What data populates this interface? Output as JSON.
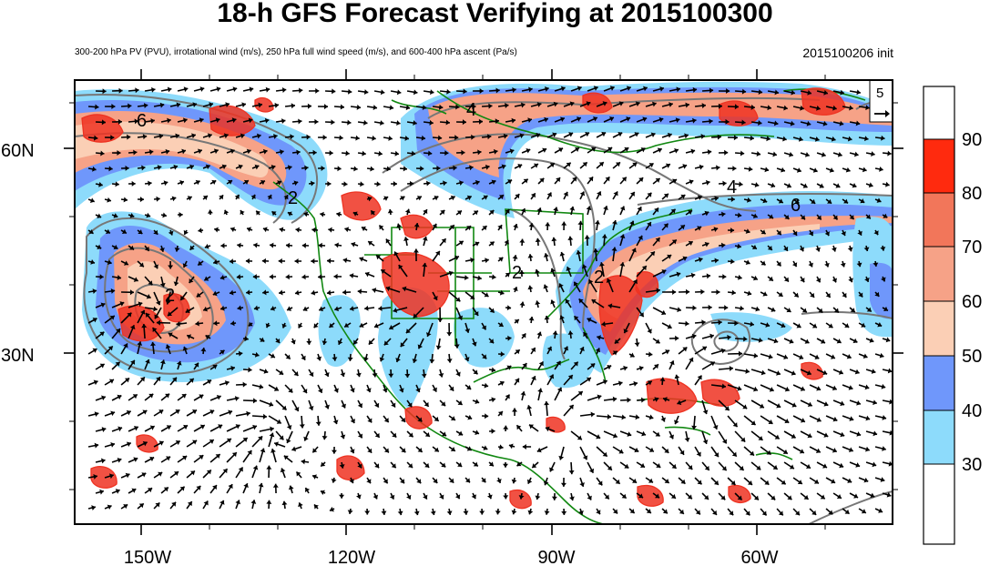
{
  "title": "18-h GFS Forecast Verifying at 2015100300",
  "subtitle": "300-200 hPa PV (PVU), irrotational wind (m/s), 250 hPa full wind speed (m/s), and 600-400 hPa ascent (Pa/s)",
  "init_label": "2015100206 init",
  "map": {
    "lon_labels": [
      "150W",
      "120W",
      "90W",
      "60W"
    ],
    "lat_labels": [
      "60N",
      "30N"
    ],
    "pv_contour_labels": [
      "6",
      "4",
      "2",
      "2",
      "2",
      "2",
      "4",
      "6"
    ],
    "reference_vector_label": "5"
  },
  "colorbar": {
    "labels": [
      "90",
      "80",
      "70",
      "60",
      "50",
      "40",
      "30"
    ],
    "colors": [
      "#ffffff",
      "#ff2a0e",
      "#f2765a",
      "#f6a287",
      "#fbcfb5",
      "#6f97fb",
      "#8ddbfb",
      "#ffffff"
    ]
  },
  "colors": {
    "jet_blue_dark": "#6f97fb",
    "jet_blue_light": "#8ddbfb",
    "jet_orange": "#f6a287",
    "pv_contour": "#777777",
    "ascent_contour": "#ee3322",
    "coastline": "#118811",
    "wind_vector": "#000000"
  }
}
